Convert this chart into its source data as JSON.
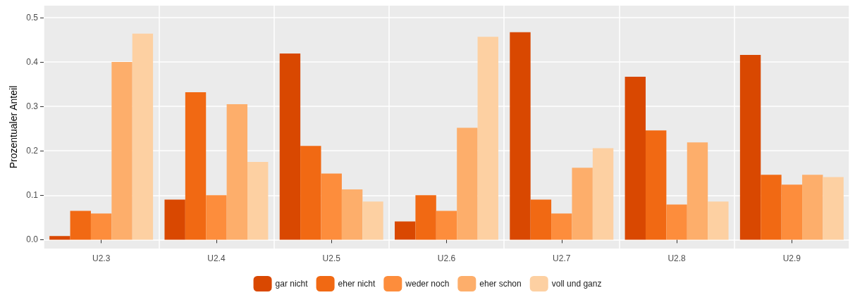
{
  "chart_data": {
    "type": "bar",
    "ylabel": "Prozentualer Anteil",
    "categories": [
      "U2.3",
      "U2.4",
      "U2.5",
      "U2.6",
      "U2.7",
      "U2.8",
      "U2.9"
    ],
    "series": [
      {
        "name": "gar nicht",
        "color": "#d94801",
        "values": [
          0.008,
          0.09,
          0.419,
          0.041,
          0.467,
          0.367,
          0.416
        ]
      },
      {
        "name": "eher nicht",
        "color": "#f16913",
        "values": [
          0.065,
          0.332,
          0.211,
          0.1,
          0.09,
          0.246,
          0.146
        ]
      },
      {
        "name": "weder noch",
        "color": "#fd8d3c",
        "values": [
          0.059,
          0.1,
          0.149,
          0.065,
          0.059,
          0.079,
          0.124
        ]
      },
      {
        "name": "eher schon",
        "color": "#fdae6b",
        "values": [
          0.4,
          0.305,
          0.113,
          0.252,
          0.162,
          0.219,
          0.146
        ]
      },
      {
        "name": "voll und ganz",
        "color": "#fdd0a2",
        "values": [
          0.464,
          0.175,
          0.086,
          0.457,
          0.206,
          0.086,
          0.141
        ]
      }
    ],
    "ylim": [
      -0.02,
      0.527
    ],
    "yticks": [
      {
        "value": 0,
        "label": "0.0"
      },
      0.1,
      0.2,
      0.3,
      0.4,
      0.5
    ],
    "grid": true,
    "legend": "bottom"
  }
}
